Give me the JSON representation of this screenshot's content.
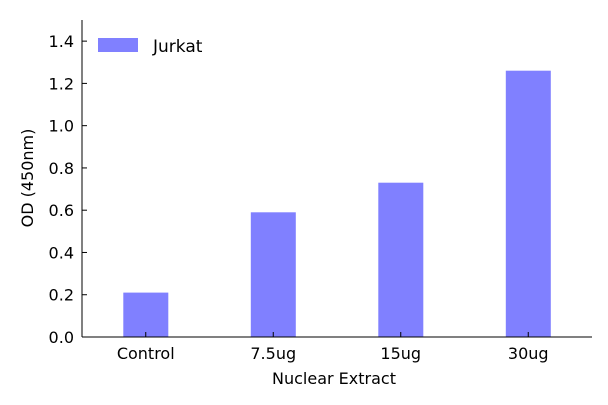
{
  "chart_data": {
    "type": "bar",
    "title": "",
    "xlabel": "Nuclear Extract",
    "ylabel": "OD (450nm)",
    "categories": [
      "Control",
      "7.5ug",
      "15ug",
      "30ug"
    ],
    "series": [
      {
        "name": "Jurkat",
        "values": [
          0.21,
          0.59,
          0.73,
          1.26
        ],
        "color": "#8080ff"
      }
    ],
    "ylim": [
      0,
      1.5
    ],
    "yticks": [
      0.0,
      0.2,
      0.4,
      0.6,
      0.8,
      1.0,
      1.2,
      1.4
    ],
    "ytick_labels": [
      "0.0",
      "0.2",
      "0.4",
      "0.6",
      "0.8",
      "1.0",
      "1.2",
      "1.4"
    ],
    "grid": false,
    "legend_position": "top-left"
  }
}
